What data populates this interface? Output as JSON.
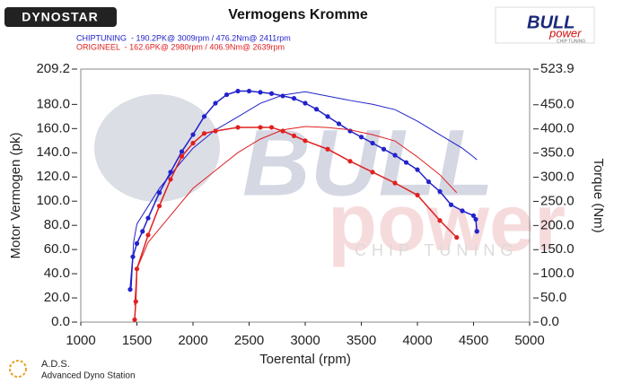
{
  "chart_data": {
    "type": "line",
    "title": "Vermogens Kromme",
    "xlabel": "Toerental (rpm)",
    "ylabel": "Motor Vermogen (pk)",
    "y2label": "Torque (Nm)",
    "xlim": [
      1000,
      5000
    ],
    "xticks": [
      1000,
      1500,
      2000,
      2500,
      3000,
      3500,
      4000,
      4500,
      5000
    ],
    "ylim": [
      0,
      209.2
    ],
    "yticks": [
      {
        "value": 0,
        "label": "0.0"
      },
      {
        "value": 20,
        "label": "20.0"
      },
      {
        "value": 40,
        "label": "40.0"
      },
      {
        "value": 60,
        "label": "60.0"
      },
      {
        "value": 80,
        "label": "80.0"
      },
      {
        "value": 100,
        "label": "100.0"
      },
      {
        "value": 120,
        "label": "120.0"
      },
      {
        "value": 140,
        "label": "140.0"
      },
      {
        "value": 160,
        "label": "160.0"
      },
      {
        "value": 180,
        "label": "180.0"
      },
      209.2
    ],
    "y2lim": [
      0,
      523.9
    ],
    "y2ticks": [
      {
        "value": 0,
        "label": "0.0"
      },
      {
        "value": 50,
        "label": "50.0"
      },
      {
        "value": 100,
        "label": "100.0"
      },
      {
        "value": 150,
        "label": "150.0"
      },
      {
        "value": 200,
        "label": "200.0"
      },
      {
        "value": 250,
        "label": "250.0"
      },
      {
        "value": 300,
        "label": "300.0"
      },
      {
        "value": 350,
        "label": "350.0"
      },
      {
        "value": 400,
        "label": "400.0"
      },
      {
        "value": 450,
        "label": "450.0"
      },
      523.9
    ],
    "grid": false,
    "series": [
      {
        "name": "CHIPTUNING  - 190.2PK@ 3009rpm / 476.2Nm@ 2411rpm",
        "color": "#2222cc",
        "markers": true,
        "x": [
          1440,
          1464,
          1500,
          1550,
          1600,
          1700,
          1800,
          1900,
          2000,
          2100,
          2200,
          2300,
          2400,
          2500,
          2600,
          2700,
          2800,
          2900,
          3000,
          3100,
          3200,
          3300,
          3400,
          3500,
          3600,
          3700,
          3800,
          3900,
          4000,
          4100,
          4200,
          4300,
          4400,
          4500,
          4520,
          4530
        ],
        "values": [
          27,
          54,
          65,
          75,
          86,
          107,
          124,
          141,
          155,
          170,
          181,
          188,
          191,
          191,
          190,
          189,
          187,
          185,
          181,
          176,
          170,
          164,
          158,
          153,
          148,
          143,
          138,
          132,
          126,
          116,
          108,
          97,
          92,
          88,
          85,
          75
        ]
      },
      {
        "color": "#2222cc",
        "axis": "y2",
        "markers": false,
        "x": [
          1450,
          1470,
          1500,
          1600,
          1700,
          1800,
          1900,
          2000,
          2200,
          2400,
          2600,
          2800,
          3000,
          3200,
          3400,
          3600,
          3800,
          4000,
          4200,
          4400,
          4500,
          4530
        ],
        "values": [
          72,
          165,
          203,
          240,
          277,
          305,
          333,
          360,
          398,
          425,
          453,
          470,
          477,
          468,
          459,
          451,
          440,
          416,
          388,
          360,
          342,
          336
        ]
      },
      {
        "name": "ORIGINEEL  - 162.6PK@ 2980rpm / 406.9Nm@ 2639rpm",
        "color": "#e02020",
        "markers": true,
        "x": [
          1480,
          1490,
          1500,
          1600,
          1700,
          1800,
          1900,
          2000,
          2100,
          2200,
          2400,
          2600,
          2700,
          2800,
          2900,
          3000,
          3200,
          3400,
          3600,
          3800,
          4000,
          4200,
          4350
        ],
        "values": [
          2,
          17,
          44,
          72,
          96,
          118,
          137,
          148,
          156,
          158,
          161,
          161,
          161,
          158,
          154,
          150,
          143,
          133,
          124,
          115,
          105,
          84,
          70
        ]
      },
      {
        "color": "#e02020",
        "axis": "y2",
        "markers": false,
        "x": [
          1480,
          1500,
          1600,
          1800,
          2000,
          2200,
          2400,
          2600,
          2800,
          3000,
          3200,
          3400,
          3600,
          3800,
          4000,
          4200,
          4350
        ],
        "values": [
          35,
          110,
          165,
          221,
          277,
          314,
          351,
          379,
          398,
          405,
          403,
          398,
          388,
          375,
          342,
          305,
          268
        ]
      }
    ]
  },
  "branding": {
    "dynostar": "DYNOSTAR",
    "bull": "BULL",
    "power": "power",
    "chip_tuning": "CHIP TUNING",
    "ads": "A.D.S.",
    "ads_full": "Advanced Dyno Station"
  }
}
